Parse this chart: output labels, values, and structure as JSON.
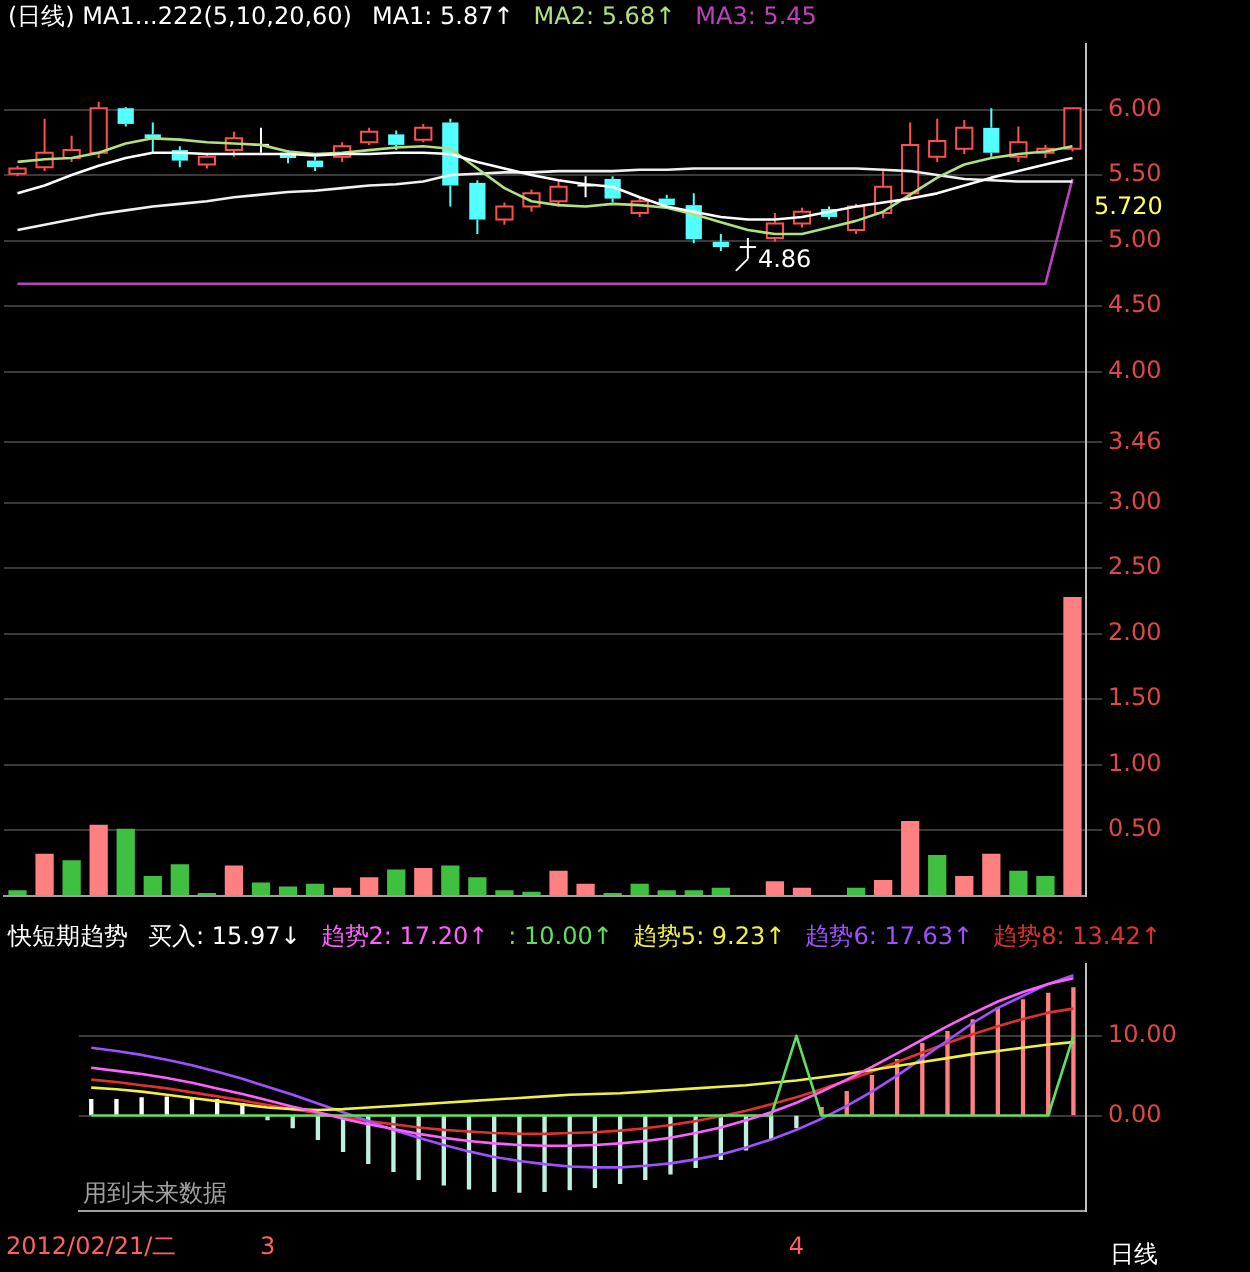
{
  "chart_data": [
    {
      "type": "candlestick",
      "title": "(日线) MA1...222(5,10,20,60)",
      "legend": "top",
      "grid": "y",
      "tick_labels": "y",
      "categories": [
        null,
        null,
        null,
        null,
        null,
        null,
        null,
        null,
        null,
        null,
        null,
        null,
        null,
        null,
        null,
        null,
        null,
        null,
        null,
        null,
        null,
        null,
        null,
        null,
        null,
        null,
        null,
        null,
        null,
        null,
        null,
        null,
        null,
        null,
        null,
        null,
        null,
        null,
        null,
        null
      ],
      "ohlc": [
        [
          5.51,
          5.57,
          5.49,
          5.55
        ],
        [
          5.56,
          5.93,
          5.53,
          5.67
        ],
        [
          5.63,
          5.8,
          5.6,
          5.69
        ],
        [
          5.67,
          6.06,
          5.63,
          6.01
        ],
        [
          6.01,
          6.02,
          5.87,
          5.89
        ],
        [
          5.81,
          5.9,
          5.67,
          5.78
        ],
        [
          5.69,
          5.72,
          5.56,
          5.61
        ],
        [
          5.58,
          5.66,
          5.55,
          5.64
        ],
        [
          5.69,
          5.83,
          5.64,
          5.78
        ],
        [
          5.73,
          5.86,
          5.67,
          5.73
        ],
        [
          5.67,
          5.69,
          5.59,
          5.63
        ],
        [
          5.61,
          5.64,
          5.53,
          5.56
        ],
        [
          5.64,
          5.75,
          5.6,
          5.72
        ],
        [
          5.75,
          5.86,
          5.73,
          5.83
        ],
        [
          5.81,
          5.84,
          5.69,
          5.73
        ],
        [
          5.77,
          5.89,
          5.75,
          5.86
        ],
        [
          5.9,
          5.93,
          5.26,
          5.42
        ],
        [
          5.44,
          5.46,
          5.05,
          5.16
        ],
        [
          5.16,
          5.29,
          5.12,
          5.26
        ],
        [
          5.26,
          5.39,
          5.22,
          5.36
        ],
        [
          5.3,
          5.46,
          5.26,
          5.41
        ],
        [
          5.42,
          5.49,
          5.33,
          5.42
        ],
        [
          5.47,
          5.49,
          5.29,
          5.32
        ],
        [
          5.21,
          5.33,
          5.18,
          5.3
        ],
        [
          5.32,
          5.35,
          5.24,
          5.27
        ],
        [
          5.27,
          5.36,
          4.98,
          5.01
        ],
        [
          4.99,
          5.05,
          4.92,
          4.95
        ],
        [
          4.95,
          5.02,
          4.86,
          4.95
        ],
        [
          5.02,
          5.21,
          4.99,
          5.13
        ],
        [
          5.13,
          5.25,
          5.1,
          5.22
        ],
        [
          5.24,
          5.26,
          5.16,
          5.18
        ],
        [
          5.08,
          5.28,
          5.05,
          5.26
        ],
        [
          5.21,
          5.55,
          5.17,
          5.41
        ],
        [
          5.36,
          5.9,
          5.33,
          5.73
        ],
        [
          5.64,
          5.93,
          5.6,
          5.76
        ],
        [
          5.7,
          5.92,
          5.66,
          5.86
        ],
        [
          5.86,
          6.01,
          5.64,
          5.67
        ],
        [
          5.64,
          5.87,
          5.6,
          5.75
        ],
        [
          5.67,
          5.73,
          5.63,
          5.7
        ],
        [
          5.7,
          6.01,
          5.68,
          6.01
        ]
      ],
      "series": [
        {
          "type": "bar",
          "colors": [
            "#40c040",
            "#ff8080",
            "#40c040",
            "#ff8080",
            "#40c040",
            "#40c040",
            "#40c040",
            "#40c040",
            "#ff8080",
            "#40c040",
            "#40c040",
            "#40c040",
            "#ff8080",
            "#ff8080",
            "#40c040",
            "#ff8080",
            "#40c040",
            "#40c040",
            "#40c040",
            "#40c040",
            "#ff8080",
            "#ff8080",
            "#40c040",
            "#40c040",
            "#40c040",
            "#40c040",
            "#40c040",
            null,
            "#ff8080",
            "#ff8080",
            null,
            "#40c040",
            "#ff8080",
            "#ff8080",
            "#40c040",
            "#ff8080",
            "#ff8080",
            "#40c040",
            "#40c040",
            "#ff8080"
          ],
          "values": [
            0.04,
            0.32,
            0.27,
            0.54,
            0.51,
            0.15,
            0.24,
            0.02,
            0.23,
            0.1,
            0.07,
            0.09,
            0.06,
            0.14,
            0.2,
            0.21,
            0.23,
            0.14,
            0.04,
            0.03,
            0.19,
            0.09,
            0.02,
            0.09,
            0.04,
            0.04,
            0.06,
            null,
            0.11,
            0.06,
            null,
            0.06,
            0.12,
            0.57,
            0.31,
            0.15,
            0.32,
            0.19,
            0.15,
            2.28
          ]
        },
        {
          "type": "line",
          "name": "MA1: 5.87↑",
          "color": "#ffffff",
          "values": [
            5.36,
            5.42,
            5.5,
            5.57,
            5.63,
            5.67,
            5.67,
            5.66,
            5.66,
            5.66,
            5.66,
            5.65,
            5.66,
            5.66,
            5.67,
            5.67,
            5.66,
            5.6,
            5.55,
            5.5,
            5.46,
            5.43,
            5.41,
            5.33,
            5.26,
            5.22,
            5.18,
            5.16,
            5.16,
            5.18,
            5.22,
            5.26,
            5.29,
            5.32,
            5.36,
            5.42,
            5.48,
            5.53,
            5.58,
            5.63
          ]
        },
        {
          "type": "line",
          "name": "MA2: 5.68↑",
          "color": "#b0e080",
          "values": [
            5.6,
            5.62,
            5.63,
            5.67,
            5.74,
            5.78,
            5.77,
            5.75,
            5.74,
            5.73,
            5.68,
            5.66,
            5.67,
            5.69,
            5.71,
            5.72,
            5.7,
            5.55,
            5.4,
            5.3,
            5.27,
            5.26,
            5.28,
            5.27,
            5.25,
            5.2,
            5.14,
            5.08,
            5.05,
            5.05,
            5.1,
            5.15,
            5.22,
            5.35,
            5.48,
            5.58,
            5.63,
            5.66,
            5.68,
            5.72
          ]
        },
        {
          "type": "line",
          "color": "#f0f0f0",
          "values": [
            5.08,
            5.12,
            5.16,
            5.2,
            5.23,
            5.26,
            5.28,
            5.3,
            5.33,
            5.35,
            5.37,
            5.38,
            5.4,
            5.42,
            5.43,
            5.45,
            5.5,
            5.51,
            5.52,
            5.52,
            5.53,
            5.53,
            5.53,
            5.54,
            5.54,
            5.55,
            5.55,
            5.55,
            5.55,
            5.55,
            5.55,
            5.55,
            5.54,
            5.53,
            5.5,
            5.47,
            5.46,
            5.45,
            5.45,
            5.45
          ]
        },
        {
          "type": "line",
          "name": "MA3: 5.45",
          "color": "#c040c0",
          "values": [
            4.67,
            4.67,
            4.67,
            4.67,
            4.67,
            4.67,
            4.67,
            4.67,
            4.67,
            4.67,
            4.67,
            4.67,
            4.67,
            4.67,
            4.67,
            4.67,
            4.67,
            4.67,
            4.67,
            4.67,
            4.67,
            4.67,
            4.67,
            4.67,
            4.67,
            4.67,
            4.67,
            4.67,
            4.67,
            4.67,
            4.67,
            4.67,
            4.67,
            4.67,
            4.67,
            4.67,
            4.67,
            4.67,
            4.67,
            5.47
          ]
        }
      ],
      "ylim": [
        0,
        6.5
      ],
      "yticks": [
        {
          "value": 0.5,
          "label": "0.50"
        },
        {
          "value": 1,
          "label": "1.00"
        },
        {
          "value": 1.5,
          "label": "1.50"
        },
        {
          "value": 2,
          "label": "2.00"
        },
        {
          "value": 2.5,
          "label": "2.50"
        },
        {
          "value": 3,
          "label": "3.00"
        },
        {
          "value": 3.46,
          "label": "3.46"
        },
        {
          "value": 4,
          "label": "4.00"
        },
        {
          "value": 4.5,
          "label": "4.50"
        },
        {
          "value": 5,
          "label": "5.00"
        },
        {
          "value": 5.5,
          "label": "5.50"
        },
        {
          "value": 6,
          "label": "6.00"
        }
      ],
      "annotations": [
        "4.86",
        "5.720"
      ]
    },
    {
      "type": "line",
      "title": "快短期趋势",
      "legend": "top",
      "grid": "y",
      "xlabel": "日线",
      "categories": [
        "2012/02/21/二",
        null,
        null,
        null,
        null,
        null,
        null,
        "3",
        null,
        null,
        null,
        null,
        null,
        null,
        null,
        null,
        null,
        null,
        null,
        null,
        null,
        null,
        null,
        null,
        null,
        null,
        null,
        null,
        "4",
        null,
        null,
        null,
        null,
        null,
        null,
        null,
        null,
        null,
        null,
        null
      ],
      "series": [
        {
          "type": "bar",
          "name": "买入: 15.97↓",
          "color": "#ffffff",
          "colors": [
            "#ffffff",
            "#ffffff",
            "#ffffff",
            "#ffffff",
            "#ffffff",
            "#ffffff",
            "#ffffff",
            "#c0f0e0",
            "#c0f0e0",
            "#c0f0e0",
            "#c0f0e0",
            "#c0f0e0",
            "#c0f0e0",
            "#c0f0e0",
            "#c0f0e0",
            "#c0f0e0",
            "#c0f0e0",
            "#c0f0e0",
            "#c0f0e0",
            "#c0f0e0",
            "#c0f0e0",
            "#c0f0e0",
            "#c0f0e0",
            "#c0f0e0",
            "#c0f0e0",
            "#c0f0e0",
            "#c0f0e0",
            "#c0f0e0",
            "#c0f0e0",
            "#ff8080",
            "#ff8080",
            "#ff8080",
            "#ff8080",
            "#ff8080",
            "#ff8080",
            "#ff8080",
            "#ff8080",
            "#ff8080",
            "#ff8080",
            "#ff8080"
          ],
          "values": [
            2,
            2,
            2.2,
            2.3,
            2.2,
            2,
            1.5,
            -0.5,
            -1.5,
            -3,
            -4.5,
            -6,
            -7,
            -8,
            -8.7,
            -9.2,
            -9.5,
            -9.6,
            -9.5,
            -9.3,
            -9,
            -8.5,
            -8,
            -7.3,
            -6.5,
            -5.5,
            -4.3,
            -3,
            -1.5,
            1,
            3,
            5,
            7,
            9,
            10.5,
            12,
            13.5,
            14.5,
            15.3,
            16
          ]
        },
        {
          "type": "line",
          "name": "趋势2: 17.20↑",
          "color": "#ff60ff",
          "values": [
            6,
            5.6,
            5.2,
            4.7,
            4.1,
            3.4,
            2.7,
            1.9,
            1.1,
            0.4,
            -0.4,
            -1.1,
            -1.7,
            -2.3,
            -2.8,
            -3.2,
            -3.5,
            -3.7,
            -3.8,
            -3.8,
            -3.7,
            -3.5,
            -3.2,
            -2.8,
            -2.2,
            -1.5,
            -0.6,
            0.4,
            1.6,
            3,
            4.5,
            6.1,
            7.8,
            9.5,
            11.2,
            12.8,
            14.3,
            15.5,
            16.5,
            17.2
          ]
        },
        {
          "type": "line",
          "name": ": 10.00↑",
          "color": "#60e060",
          "values": [
            0,
            0,
            0,
            0,
            0,
            0,
            0,
            0,
            0,
            0,
            0,
            0,
            0,
            0,
            0,
            0,
            0,
            0,
            0,
            0,
            0,
            0,
            0,
            0,
            0,
            0,
            0,
            0,
            10,
            0,
            0,
            0,
            0,
            0,
            0,
            0,
            0,
            0,
            0,
            10
          ]
        },
        {
          "type": "line",
          "name": "趋势5: 9.23↑",
          "color": "#f0f040",
          "values": [
            3.5,
            3.3,
            3,
            2.6,
            2.2,
            1.8,
            1.4,
            1,
            0.8,
            0.7,
            0.8,
            1,
            1.2,
            1.4,
            1.6,
            1.8,
            2,
            2.2,
            2.4,
            2.6,
            2.7,
            2.8,
            3,
            3.2,
            3.4,
            3.6,
            3.8,
            4.1,
            4.4,
            4.8,
            5.2,
            5.7,
            6.2,
            6.7,
            7.2,
            7.7,
            8.1,
            8.5,
            8.9,
            9.2
          ]
        },
        {
          "type": "line",
          "name": "趋势6: 17.63↑",
          "color": "#a050ff",
          "values": [
            8.5,
            8.1,
            7.6,
            7,
            6.3,
            5.5,
            4.6,
            3.6,
            2.6,
            1.5,
            0.4,
            -0.7,
            -1.8,
            -2.8,
            -3.7,
            -4.5,
            -5.2,
            -5.7,
            -6.1,
            -6.4,
            -6.5,
            -6.5,
            -6.3,
            -6,
            -5.5,
            -4.9,
            -4,
            -3,
            -1.8,
            -0.4,
            1.2,
            3,
            5,
            7.2,
            9.4,
            11.6,
            13.5,
            15,
            16.5,
            17.6
          ]
        },
        {
          "type": "line",
          "name": "趋势8: 13.42↑",
          "color": "#e03030",
          "values": [
            4.5,
            4.2,
            3.8,
            3.4,
            2.9,
            2.4,
            1.9,
            1.3,
            0.8,
            0.3,
            -0.2,
            -0.7,
            -1.1,
            -1.5,
            -1.8,
            -2,
            -2.2,
            -2.3,
            -2.3,
            -2.2,
            -2.1,
            -1.9,
            -1.6,
            -1.2,
            -0.7,
            -0.1,
            0.6,
            1.4,
            2.3,
            3.3,
            4.4,
            5.5,
            6.7,
            7.9,
            9.1,
            10.2,
            11.2,
            12.1,
            12.9,
            13.4
          ]
        }
      ],
      "ylim": [
        -12,
        19
      ],
      "yticks": [
        {
          "value": 0,
          "label": "0.00"
        },
        {
          "value": 10,
          "label": "10.00"
        }
      ],
      "annotations": [
        "用到未来数据"
      ]
    }
  ]
}
